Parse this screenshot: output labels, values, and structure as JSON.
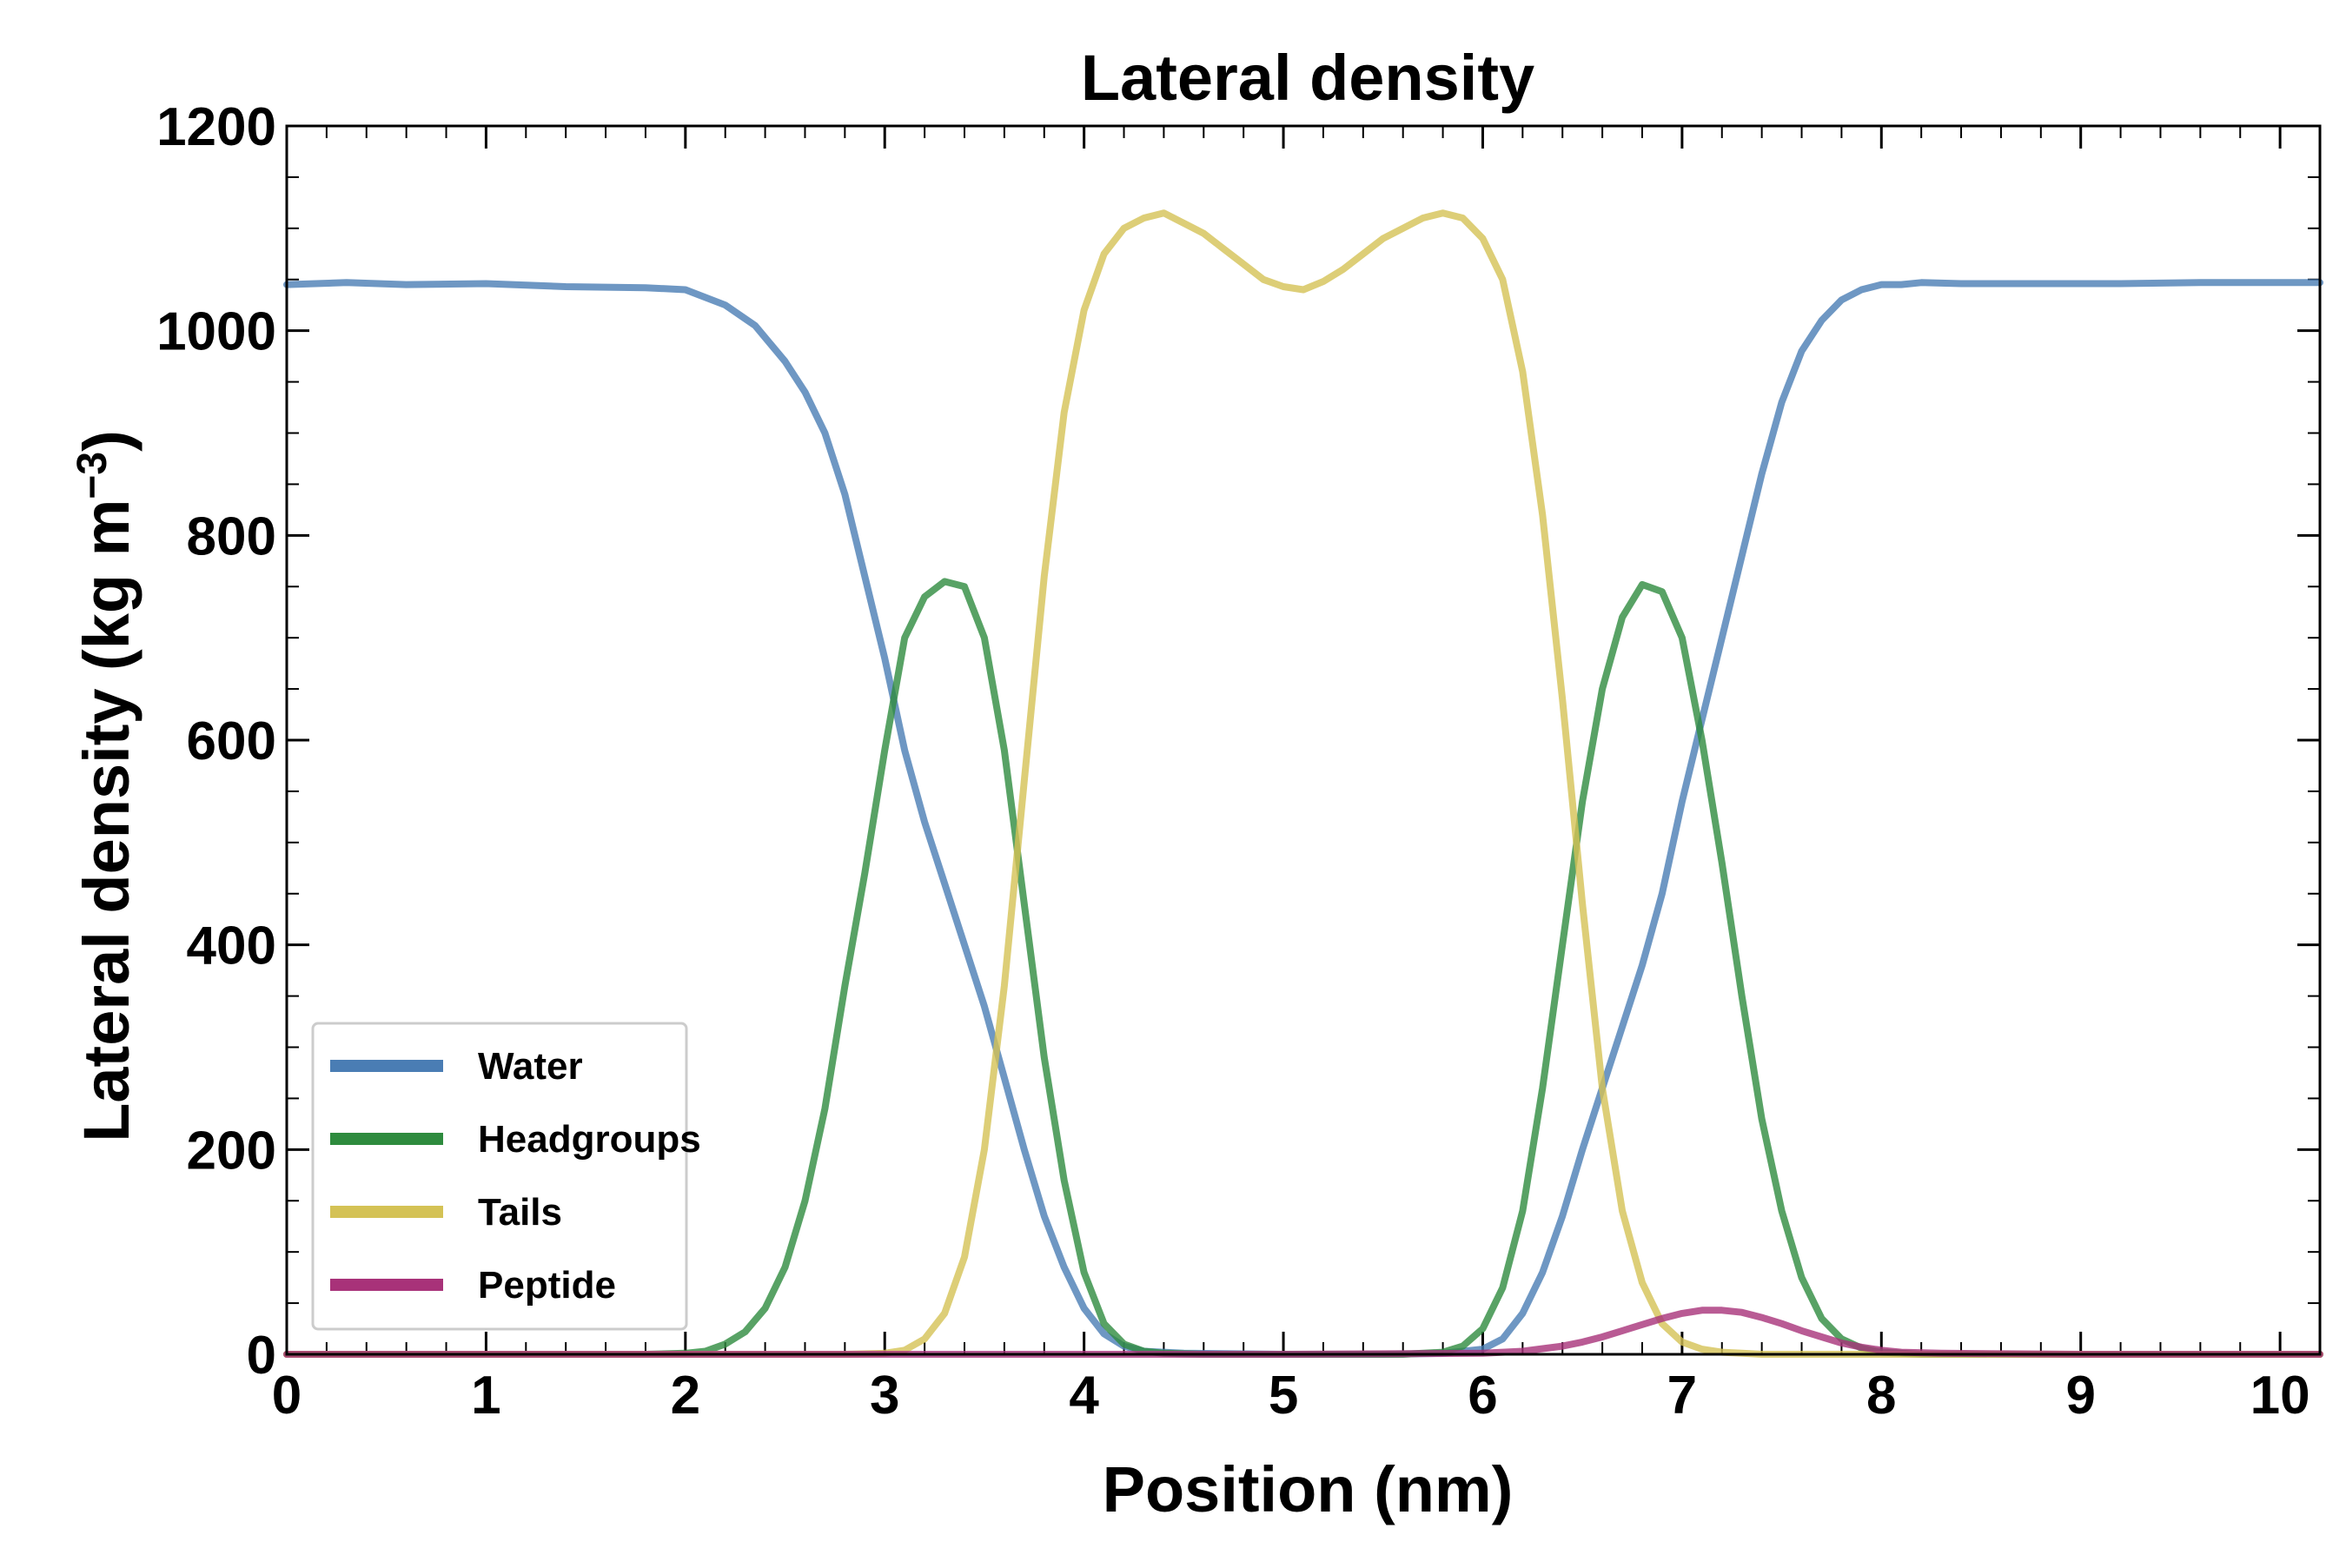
{
  "chart_data": {
    "type": "line",
    "title": "Lateral density",
    "xlabel": "Position (nm)",
    "ylabel": "Lateral density (kg m",
    "ylabel_exponent": "−3",
    "ylabel_close": ")",
    "xlim": [
      0,
      10.2
    ],
    "ylim": [
      0,
      1200
    ],
    "xticks": [
      0,
      1,
      2,
      3,
      4,
      5,
      6,
      7,
      8,
      9,
      10
    ],
    "yticks": [
      0,
      200,
      400,
      600,
      800,
      1000,
      1200
    ],
    "xtick_labels": [
      "0",
      "1",
      "2",
      "3",
      "4",
      "5",
      "6",
      "7",
      "8",
      "9",
      "10"
    ],
    "ytick_labels": [
      "0",
      "200",
      "400",
      "600",
      "800",
      "1000",
      "1200"
    ],
    "grid": false,
    "legend_position": "bottom-left",
    "series": [
      {
        "name": "Water",
        "color": "#4a7db4",
        "x": [
          0,
          0.3,
          0.6,
          1.0,
          1.4,
          1.8,
          2.0,
          2.2,
          2.35,
          2.5,
          2.6,
          2.7,
          2.8,
          2.9,
          3.0,
          3.1,
          3.2,
          3.3,
          3.4,
          3.5,
          3.6,
          3.7,
          3.8,
          3.9,
          4.0,
          4.1,
          4.2,
          4.3,
          4.5,
          5.0,
          5.5,
          5.8,
          6.0,
          6.1,
          6.2,
          6.3,
          6.4,
          6.5,
          6.6,
          6.7,
          6.8,
          6.9,
          7.0,
          7.1,
          7.2,
          7.3,
          7.4,
          7.5,
          7.6,
          7.7,
          7.8,
          7.9,
          8.0,
          8.1,
          8.2,
          8.4,
          8.8,
          9.2,
          9.6,
          10.0,
          10.2
        ],
        "values": [
          1045,
          1047,
          1045,
          1046,
          1043,
          1042,
          1040,
          1025,
          1005,
          970,
          940,
          900,
          840,
          760,
          680,
          590,
          520,
          460,
          400,
          340,
          270,
          200,
          135,
          85,
          45,
          20,
          8,
          3,
          1,
          0,
          0,
          1,
          5,
          15,
          40,
          80,
          135,
          200,
          260,
          320,
          380,
          450,
          540,
          620,
          700,
          780,
          860,
          930,
          980,
          1010,
          1030,
          1040,
          1045,
          1045,
          1047,
          1046,
          1046,
          1046,
          1047,
          1047,
          1047
        ]
      },
      {
        "name": "Headgroups",
        "color": "#2e8b3e",
        "x": [
          0,
          1.0,
          1.8,
          2.0,
          2.1,
          2.2,
          2.3,
          2.4,
          2.5,
          2.6,
          2.7,
          2.8,
          2.9,
          3.0,
          3.1,
          3.2,
          3.3,
          3.4,
          3.5,
          3.6,
          3.7,
          3.8,
          3.9,
          4.0,
          4.1,
          4.2,
          4.3,
          4.4,
          4.6,
          5.0,
          5.6,
          5.8,
          5.9,
          6.0,
          6.1,
          6.2,
          6.3,
          6.4,
          6.5,
          6.6,
          6.7,
          6.8,
          6.9,
          7.0,
          7.1,
          7.2,
          7.3,
          7.4,
          7.5,
          7.6,
          7.7,
          7.8,
          7.9,
          8.0,
          8.1,
          8.2,
          8.4,
          9.0,
          10.2
        ],
        "values": [
          0,
          0,
          0,
          1,
          3,
          10,
          22,
          45,
          85,
          150,
          240,
          360,
          470,
          590,
          700,
          740,
          755,
          750,
          700,
          590,
          440,
          290,
          170,
          80,
          30,
          10,
          3,
          1,
          0,
          0,
          0,
          2,
          8,
          25,
          65,
          140,
          260,
          400,
          540,
          650,
          720,
          752,
          745,
          700,
          600,
          480,
          350,
          230,
          140,
          75,
          35,
          15,
          6,
          2,
          1,
          0,
          0,
          0,
          0
        ]
      },
      {
        "name": "Tails",
        "color": "#d4c255",
        "x": [
          0,
          2.0,
          2.8,
          3.0,
          3.1,
          3.2,
          3.3,
          3.4,
          3.5,
          3.6,
          3.7,
          3.8,
          3.9,
          4.0,
          4.1,
          4.2,
          4.3,
          4.4,
          4.5,
          4.6,
          4.7,
          4.8,
          4.9,
          5.0,
          5.1,
          5.2,
          5.3,
          5.4,
          5.5,
          5.6,
          5.7,
          5.8,
          5.9,
          6.0,
          6.1,
          6.2,
          6.3,
          6.4,
          6.5,
          6.6,
          6.7,
          6.8,
          6.9,
          7.0,
          7.1,
          7.2,
          7.3,
          7.4,
          7.6,
          8.0,
          10.2
        ],
        "values": [
          0,
          0,
          0,
          1,
          4,
          15,
          40,
          95,
          200,
          360,
          560,
          760,
          920,
          1020,
          1075,
          1100,
          1110,
          1115,
          1105,
          1095,
          1080,
          1065,
          1050,
          1043,
          1040,
          1048,
          1060,
          1075,
          1090,
          1100,
          1110,
          1115,
          1110,
          1090,
          1050,
          960,
          820,
          640,
          440,
          260,
          140,
          70,
          30,
          12,
          5,
          2,
          1,
          0,
          0,
          0,
          0
        ]
      },
      {
        "name": "Peptide",
        "color": "#a83279",
        "x": [
          0,
          3.0,
          4.0,
          5.0,
          6.0,
          6.2,
          6.4,
          6.5,
          6.6,
          6.7,
          6.8,
          6.9,
          7.0,
          7.1,
          7.2,
          7.3,
          7.4,
          7.5,
          7.6,
          7.7,
          7.8,
          7.9,
          8.0,
          8.1,
          8.3,
          9.0,
          10.2
        ],
        "values": [
          0,
          0,
          0,
          0,
          1,
          3,
          8,
          12,
          17,
          23,
          29,
          35,
          40,
          43,
          43,
          41,
          36,
          30,
          23,
          17,
          11,
          7,
          4,
          2,
          1,
          0,
          0
        ]
      }
    ]
  }
}
